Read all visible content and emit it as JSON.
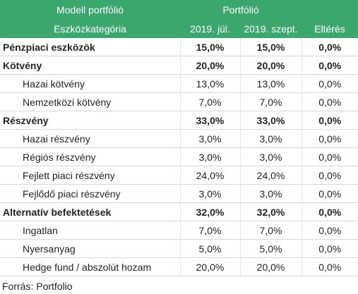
{
  "header": {
    "row1": [
      "Modell portfólió",
      "Portfólió"
    ],
    "row2": [
      "Eszközkategória",
      "2019. júl.",
      "2019. szept.",
      "Eltérés"
    ]
  },
  "table": {
    "rows": [
      [
        "Pénzpiaci eszközök",
        "15,0%",
        "15,0%",
        "0,0%"
      ],
      [
        "Kötvény",
        "20,0%",
        "20,0%",
        "0,0%"
      ],
      [
        "Hazai kötvény",
        "13,0%",
        "13,0%",
        "0,0%"
      ],
      [
        "Nemzetközi kötvény",
        "7,0%",
        "7,0%",
        "0,0%"
      ],
      [
        "Részvény",
        "33,0%",
        "33,0%",
        "0,0%"
      ],
      [
        "Hazai részvény",
        "3,0%",
        "3,0%",
        "0,0%"
      ],
      [
        "Régiós részvény",
        "3,0%",
        "3,0%",
        "0,0%"
      ],
      [
        "Fejlett piaci részvény",
        "24,0%",
        "24,0%",
        "0,0%"
      ],
      [
        "Fejlődő piaci részvény",
        "3,0%",
        "3,0%",
        "0,0%"
      ],
      [
        "Alternatív befektetések",
        "32,0%",
        "32,0%",
        "0,0%"
      ],
      [
        "Ingatlan",
        "7,0%",
        "7,0%",
        "0,0%"
      ],
      [
        "Nyersanyag",
        "5,0%",
        "5,0%",
        "0,0%"
      ],
      [
        "Hedge fund / abszolút hozam",
        "20,0%",
        "20,0%",
        "0,0%"
      ]
    ]
  },
  "footer": "Forrás: Portfolio"
}
